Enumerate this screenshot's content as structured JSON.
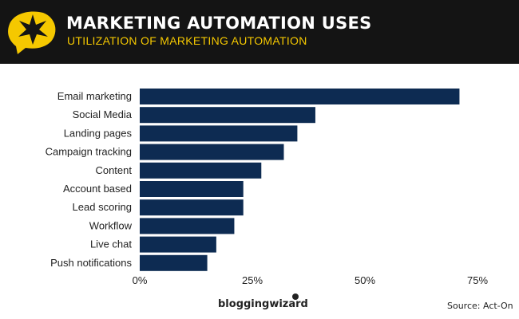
{
  "header": {
    "title": "MARKETING AUTOMATION USES",
    "subtitle": "UTILIZATION OF MARKETING AUTOMATION"
  },
  "colors": {
    "bar": "#0d2b52",
    "header_bg": "#141414",
    "accent": "#f5c800"
  },
  "footer": {
    "brand": "bloggingwizard",
    "source": "Source: Act-On"
  },
  "chart_data": {
    "type": "bar",
    "orientation": "horizontal",
    "title": "MARKETING AUTOMATION USES",
    "subtitle": "UTILIZATION OF MARKETING AUTOMATION",
    "categories": [
      "Email marketing",
      "Social Media",
      "Landing pages",
      "Campaign tracking",
      "Content",
      "Account based",
      "Lead scoring",
      "Workflow",
      "Live chat",
      "Push notifications"
    ],
    "values": [
      71,
      39,
      35,
      32,
      27,
      23,
      23,
      21,
      17,
      15
    ],
    "xlim": [
      0,
      75
    ],
    "xticks": [
      0,
      25,
      50,
      75
    ],
    "xtick_labels": [
      "0%",
      "25%",
      "50%",
      "75%"
    ],
    "xlabel": "",
    "ylabel": "",
    "grid": false
  }
}
